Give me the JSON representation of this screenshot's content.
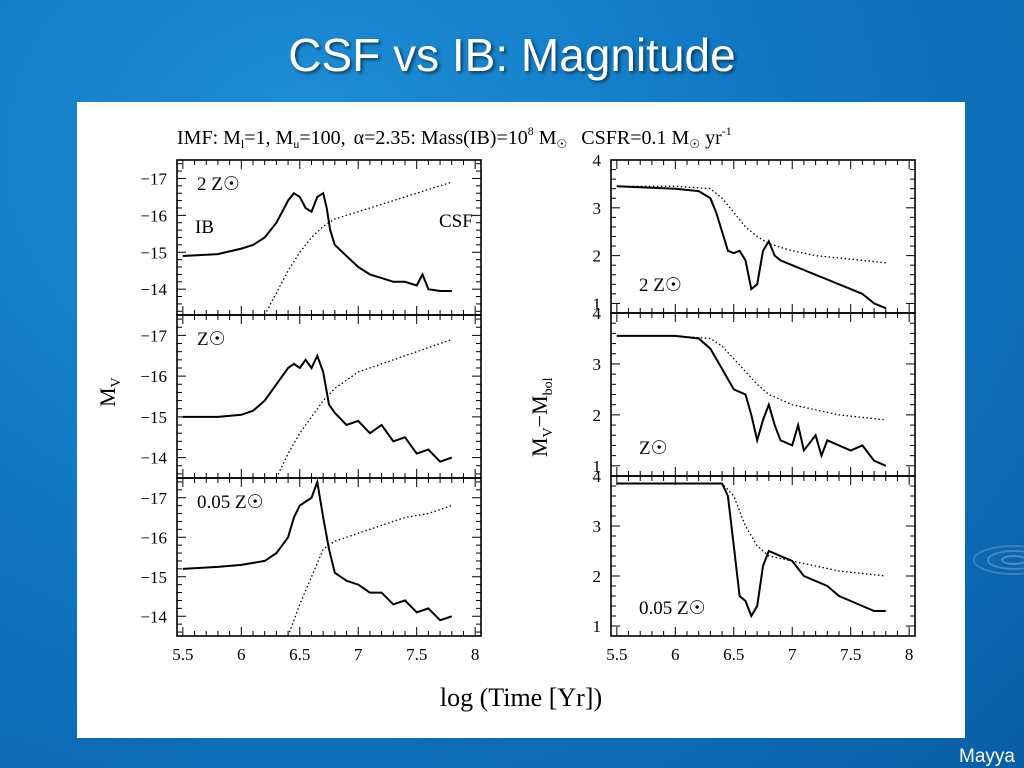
{
  "slide": {
    "title": "CSF vs IB: Magnitude",
    "author": "Mayya"
  },
  "figure": {
    "header": "IMF: Ml=1, Mu=100, α=2.35: Mass(IB)=10^8 M☉  CSFR=0.1 M☉ yr^-1",
    "header_parts": {
      "imf": "IMF: M",
      "ml_sub": "l",
      "ml_val": "=1, M",
      "mu_sub": "u",
      "mu_val": "=100,",
      "alpha": "α=2.35: Mass(IB)=10",
      "mass_exp": "8",
      "msun": " M",
      "sun_symbol": "☉",
      "csfr": "CSFR=0.1 M",
      "yr": " yr",
      "yr_exp": "-1"
    },
    "xlabel": "log (Time [Yr])",
    "left_ylabel": "M",
    "left_ylabel_sub": "V",
    "right_ylabel": "M",
    "right_ylabel_sub1": "V",
    "right_ylabel_mid": "−M",
    "right_ylabel_sub2": "bol",
    "label_ib": "IB",
    "label_csf": "CSF"
  },
  "chart_data": [
    {
      "type": "line",
      "panel": "left-top",
      "annotation": "2 Z☉",
      "ylim": [
        -13.3,
        -17.5
      ],
      "xlim": [
        5.45,
        8.05
      ],
      "yticks": [
        -17,
        -16,
        -15,
        -14
      ],
      "xticks": [],
      "series": [
        {
          "name": "IB",
          "style": "solid",
          "x": [
            5.5,
            5.8,
            6.0,
            6.1,
            6.2,
            6.3,
            6.4,
            6.45,
            6.5,
            6.55,
            6.6,
            6.65,
            6.7,
            6.73,
            6.76,
            6.8,
            6.9,
            7.0,
            7.1,
            7.2,
            7.3,
            7.4,
            7.5,
            7.55,
            7.6,
            7.7,
            7.8
          ],
          "y": [
            -14.9,
            -14.95,
            -15.1,
            -15.2,
            -15.4,
            -15.8,
            -16.4,
            -16.6,
            -16.5,
            -16.2,
            -16.1,
            -16.5,
            -16.6,
            -16.2,
            -15.6,
            -15.2,
            -14.9,
            -14.6,
            -14.4,
            -14.3,
            -14.2,
            -14.2,
            -14.1,
            -14.4,
            -14.0,
            -13.95,
            -13.95
          ]
        },
        {
          "name": "CSF",
          "style": "dotted",
          "x": [
            6.2,
            6.3,
            6.4,
            6.5,
            6.6,
            6.7,
            6.8,
            7.0,
            7.2,
            7.4,
            7.6,
            7.8
          ],
          "y": [
            -13.3,
            -13.9,
            -14.5,
            -15.0,
            -15.4,
            -15.7,
            -15.9,
            -16.1,
            -16.3,
            -16.5,
            -16.7,
            -16.9
          ]
        }
      ]
    },
    {
      "type": "line",
      "panel": "left-middle",
      "annotation": "Z☉",
      "ylim": [
        -13.5,
        -17.5
      ],
      "xlim": [
        5.45,
        8.05
      ],
      "yticks": [
        -17,
        -16,
        -15,
        -14
      ],
      "xticks": [],
      "series": [
        {
          "style": "solid",
          "x": [
            5.5,
            5.8,
            6.0,
            6.1,
            6.2,
            6.3,
            6.4,
            6.45,
            6.5,
            6.55,
            6.6,
            6.65,
            6.7,
            6.75,
            6.8,
            6.9,
            7.0,
            7.1,
            7.2,
            7.3,
            7.4,
            7.5,
            7.6,
            7.7,
            7.8
          ],
          "y": [
            -15.0,
            -15.0,
            -15.05,
            -15.15,
            -15.4,
            -15.8,
            -16.2,
            -16.3,
            -16.2,
            -16.4,
            -16.2,
            -16.5,
            -16.1,
            -15.3,
            -15.1,
            -14.8,
            -14.9,
            -14.6,
            -14.8,
            -14.4,
            -14.5,
            -14.1,
            -14.2,
            -13.9,
            -14.0
          ]
        },
        {
          "style": "dotted",
          "x": [
            6.3,
            6.4,
            6.5,
            6.6,
            6.7,
            6.8,
            7.0,
            7.2,
            7.4,
            7.6,
            7.8
          ],
          "y": [
            -13.5,
            -14.1,
            -14.6,
            -15.0,
            -15.4,
            -15.7,
            -16.1,
            -16.3,
            -16.5,
            -16.7,
            -16.9
          ]
        }
      ]
    },
    {
      "type": "line",
      "panel": "left-bottom",
      "annotation": "0.05 Z☉",
      "ylim": [
        -13.5,
        -17.5
      ],
      "xlim": [
        5.45,
        8.05
      ],
      "yticks": [
        -17,
        -16,
        -15,
        -14
      ],
      "xticks": [
        "5.5",
        "6",
        "6.5",
        "7",
        "7.5",
        "8"
      ],
      "series": [
        {
          "style": "solid",
          "x": [
            5.5,
            5.8,
            6.0,
            6.2,
            6.3,
            6.4,
            6.45,
            6.5,
            6.55,
            6.6,
            6.65,
            6.7,
            6.75,
            6.8,
            6.9,
            7.0,
            7.1,
            7.2,
            7.3,
            7.4,
            7.5,
            7.6,
            7.7,
            7.8
          ],
          "y": [
            -15.2,
            -15.25,
            -15.3,
            -15.4,
            -15.6,
            -16.0,
            -16.5,
            -16.8,
            -16.9,
            -17.0,
            -17.4,
            -16.5,
            -15.7,
            -15.1,
            -14.9,
            -14.8,
            -14.6,
            -14.6,
            -14.3,
            -14.4,
            -14.1,
            -14.2,
            -13.9,
            -14.0
          ]
        },
        {
          "style": "dotted",
          "x": [
            6.4,
            6.5,
            6.6,
            6.7,
            6.8,
            7.0,
            7.2,
            7.4,
            7.6,
            7.8
          ],
          "y": [
            -13.5,
            -14.3,
            -15.0,
            -15.7,
            -15.9,
            -16.1,
            -16.3,
            -16.5,
            -16.6,
            -16.8
          ]
        }
      ]
    },
    {
      "type": "line",
      "panel": "right-top",
      "annotation": "2 Z☉",
      "ylim": [
        0.8,
        4.0
      ],
      "xlim": [
        5.45,
        8.05
      ],
      "yticks": [
        4,
        3,
        2,
        1
      ],
      "xticks": [],
      "series": [
        {
          "style": "solid",
          "x": [
            5.5,
            6.0,
            6.2,
            6.3,
            6.35,
            6.4,
            6.45,
            6.5,
            6.55,
            6.6,
            6.65,
            6.7,
            6.75,
            6.8,
            6.85,
            6.9,
            7.0,
            7.1,
            7.2,
            7.3,
            7.4,
            7.5,
            7.6,
            7.7,
            7.8
          ],
          "y": [
            3.45,
            3.4,
            3.35,
            3.2,
            2.9,
            2.5,
            2.1,
            2.05,
            2.1,
            1.9,
            1.3,
            1.4,
            2.1,
            2.3,
            2.0,
            1.9,
            1.8,
            1.7,
            1.6,
            1.5,
            1.4,
            1.3,
            1.2,
            1.0,
            0.9
          ]
        },
        {
          "style": "dotted",
          "x": [
            5.5,
            6.0,
            6.3,
            6.4,
            6.5,
            6.6,
            6.7,
            6.8,
            7.0,
            7.2,
            7.4,
            7.6,
            7.8
          ],
          "y": [
            3.45,
            3.45,
            3.4,
            3.2,
            2.9,
            2.6,
            2.4,
            2.25,
            2.1,
            2.0,
            1.95,
            1.9,
            1.85
          ]
        }
      ]
    },
    {
      "type": "line",
      "panel": "right-middle",
      "annotation": "Z☉",
      "ylim": [
        0.8,
        4.0
      ],
      "xlim": [
        5.45,
        8.05
      ],
      "yticks": [
        4,
        3,
        2,
        1
      ],
      "xticks": [],
      "series": [
        {
          "style": "solid",
          "x": [
            5.5,
            6.0,
            6.2,
            6.3,
            6.4,
            6.5,
            6.6,
            6.65,
            6.7,
            6.75,
            6.8,
            6.85,
            6.9,
            7.0,
            7.05,
            7.1,
            7.2,
            7.25,
            7.3,
            7.4,
            7.5,
            7.6,
            7.7,
            7.8
          ],
          "y": [
            3.55,
            3.55,
            3.5,
            3.3,
            2.9,
            2.5,
            2.4,
            2.0,
            1.5,
            1.9,
            2.2,
            1.8,
            1.5,
            1.4,
            1.8,
            1.3,
            1.6,
            1.2,
            1.5,
            1.4,
            1.3,
            1.4,
            1.1,
            1.0
          ]
        },
        {
          "style": "dotted",
          "x": [
            5.5,
            6.0,
            6.3,
            6.4,
            6.5,
            6.6,
            6.7,
            6.8,
            7.0,
            7.2,
            7.4,
            7.6,
            7.8
          ],
          "y": [
            3.55,
            3.55,
            3.5,
            3.35,
            3.1,
            2.85,
            2.6,
            2.4,
            2.2,
            2.1,
            2.0,
            1.95,
            1.9
          ]
        }
      ]
    },
    {
      "type": "line",
      "panel": "right-bottom",
      "annotation": "0.05 Z☉",
      "ylim": [
        0.8,
        4.0
      ],
      "xlim": [
        5.45,
        8.05
      ],
      "yticks": [
        4,
        3,
        2,
        1
      ],
      "xticks": [
        "5.5",
        "6",
        "6.5",
        "7",
        "7.5",
        "8"
      ],
      "series": [
        {
          "style": "solid",
          "x": [
            5.5,
            6.0,
            6.4,
            6.45,
            6.5,
            6.55,
            6.6,
            6.65,
            6.7,
            6.75,
            6.8,
            6.9,
            7.0,
            7.1,
            7.2,
            7.3,
            7.4,
            7.5,
            7.6,
            7.7,
            7.8
          ],
          "y": [
            3.85,
            3.85,
            3.85,
            3.6,
            2.6,
            1.6,
            1.5,
            1.2,
            1.4,
            2.2,
            2.5,
            2.4,
            2.3,
            2.0,
            1.9,
            1.8,
            1.6,
            1.5,
            1.4,
            1.3,
            1.3
          ]
        },
        {
          "style": "dotted",
          "x": [
            5.5,
            6.0,
            6.4,
            6.5,
            6.6,
            6.7,
            6.8,
            7.0,
            7.2,
            7.4,
            7.6,
            7.8
          ],
          "y": [
            3.85,
            3.85,
            3.85,
            3.6,
            3.0,
            2.6,
            2.4,
            2.3,
            2.2,
            2.1,
            2.05,
            2.0
          ]
        }
      ]
    }
  ]
}
